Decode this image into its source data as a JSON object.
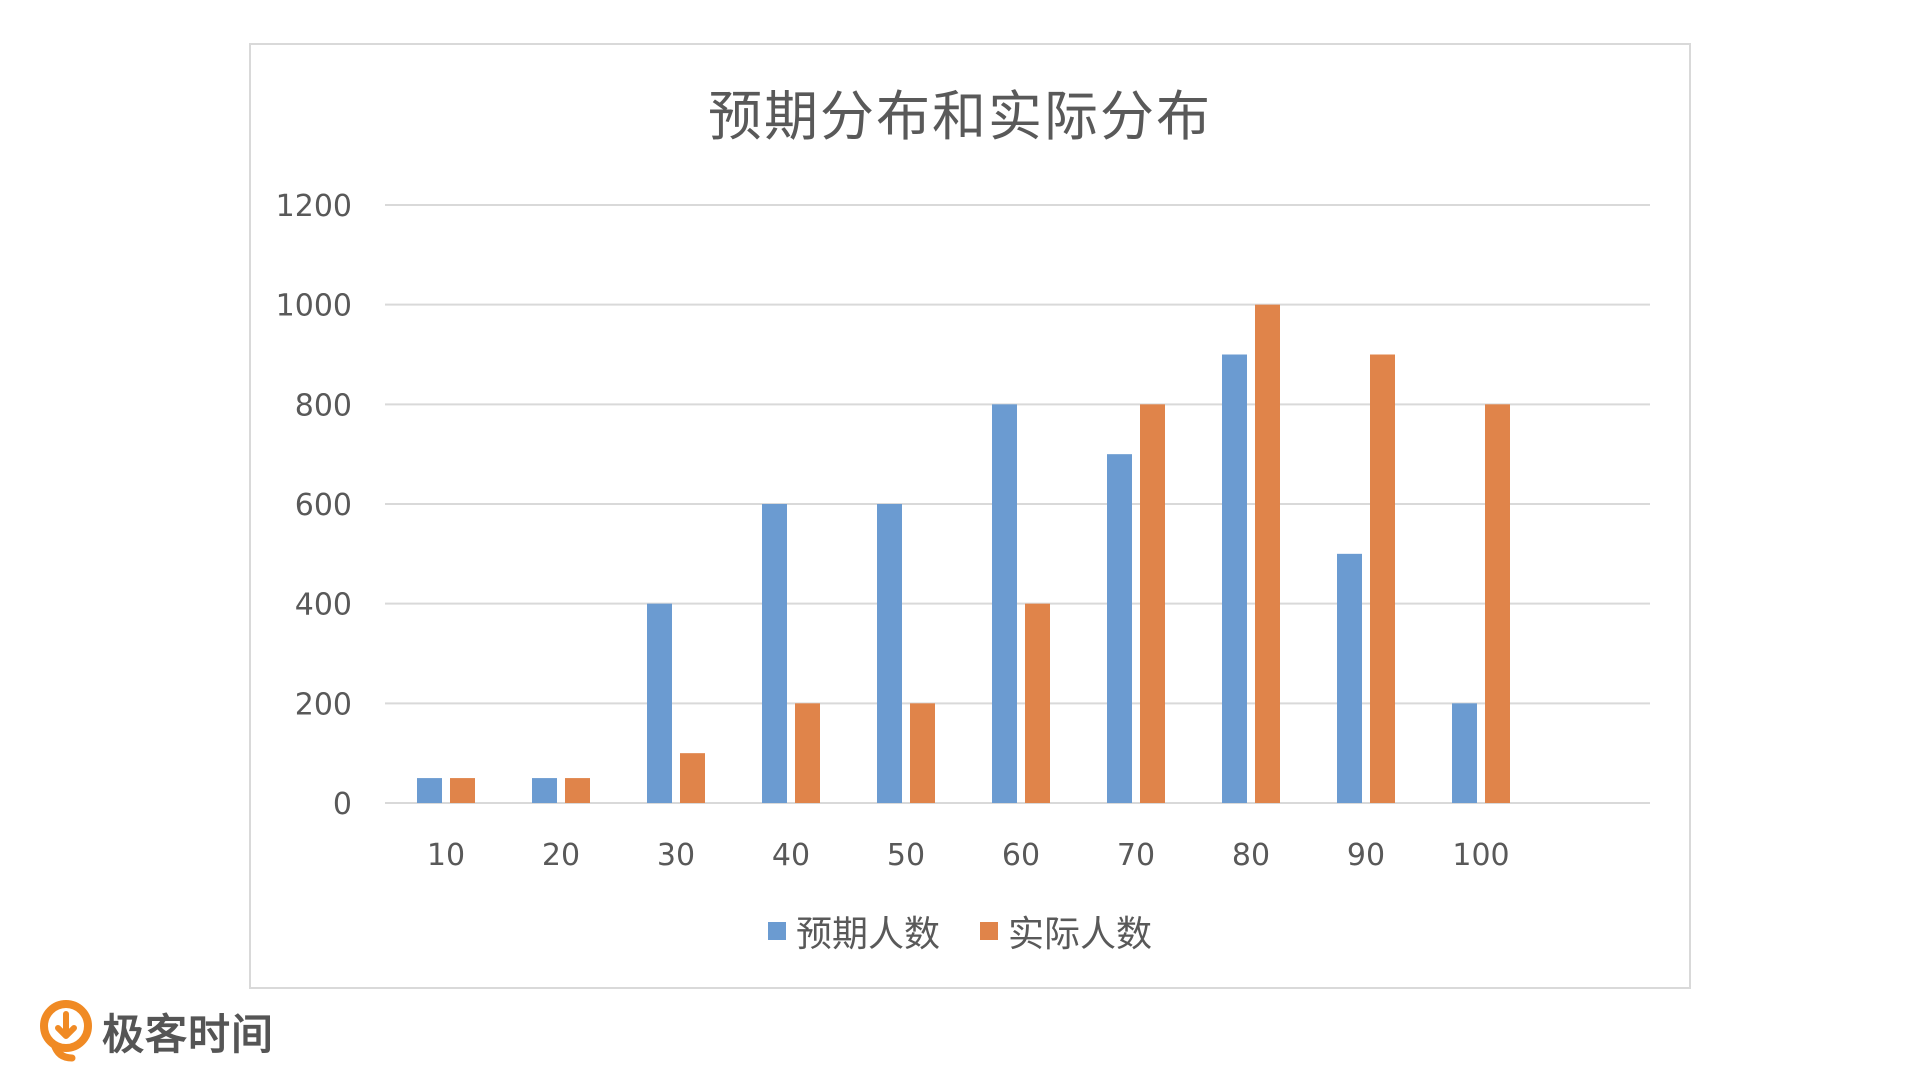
{
  "chart_data": {
    "type": "bar",
    "title": "预期分布和实际分布",
    "xlabel": "",
    "ylabel": "",
    "categories": [
      "10",
      "20",
      "30",
      "40",
      "50",
      "60",
      "70",
      "80",
      "90",
      "100"
    ],
    "series": [
      {
        "name": "预期人数",
        "color": "#6b9bd1",
        "values": [
          50,
          50,
          400,
          600,
          600,
          800,
          700,
          900,
          500,
          200
        ]
      },
      {
        "name": "实际人数",
        "color": "#e0844a",
        "values": [
          50,
          50,
          100,
          200,
          200,
          400,
          800,
          1000,
          900,
          800
        ]
      }
    ],
    "ylim": [
      0,
      1200
    ],
    "yticks": [
      0,
      200,
      400,
      600,
      800,
      1000,
      1200
    ],
    "grid": true,
    "legend_position": "bottom"
  },
  "brand": {
    "logo_text": "极客时间",
    "logo_icon": "geek-time-logo-icon",
    "logo_color": "#f08a24"
  }
}
